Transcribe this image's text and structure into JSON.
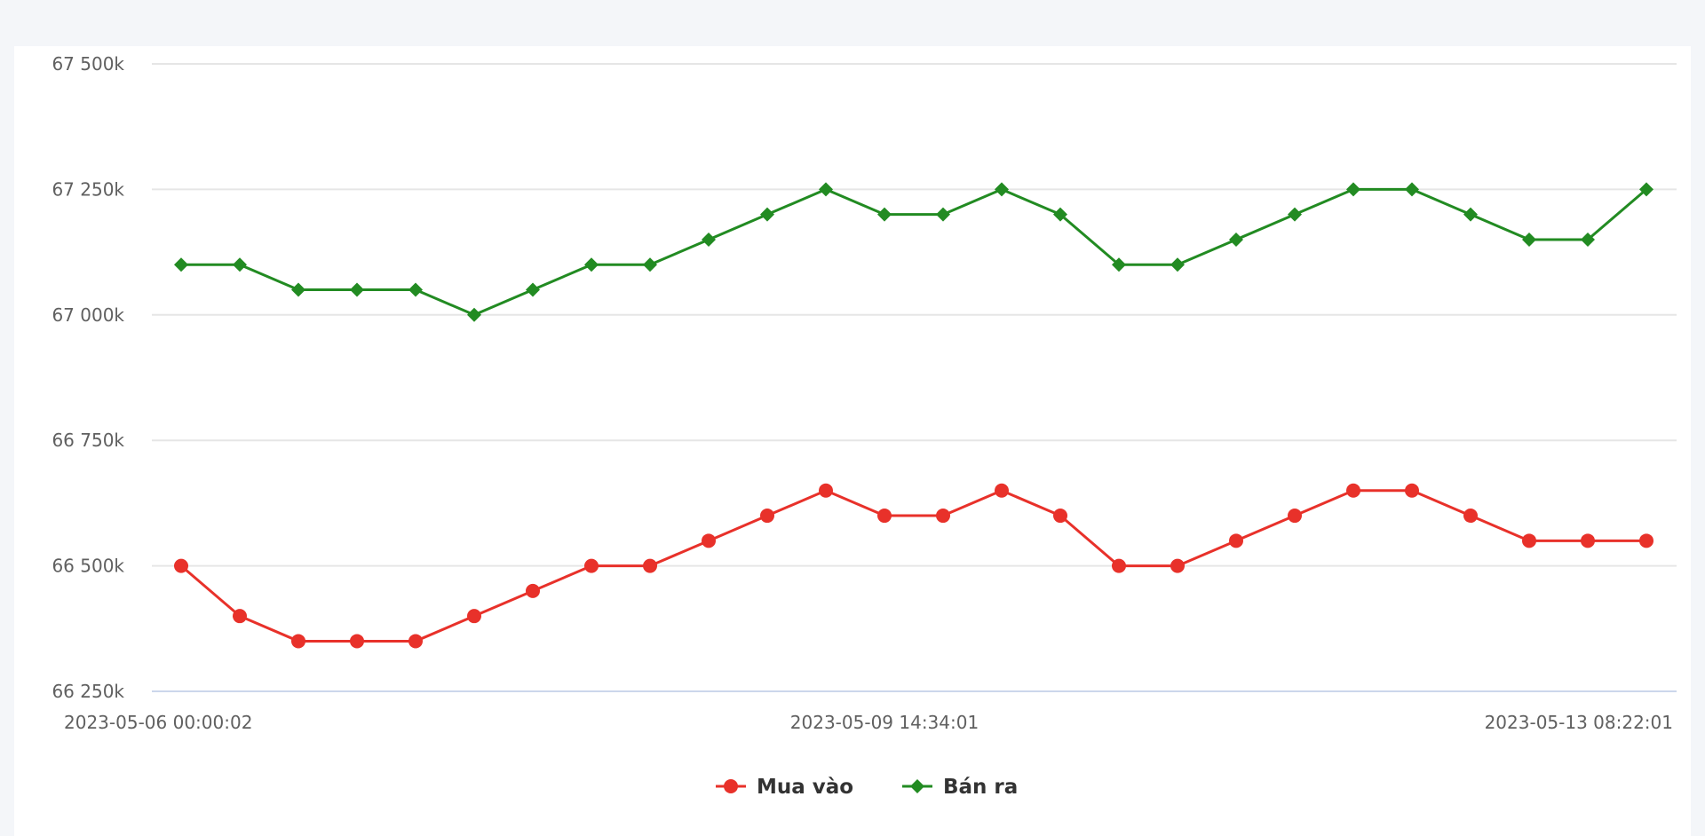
{
  "chart_data": {
    "type": "line",
    "title": "",
    "xlabel": "",
    "ylabel": "",
    "ylim": [
      66250,
      67500
    ],
    "y_ticks": [
      66250,
      66500,
      66750,
      67000,
      67250,
      67500
    ],
    "y_tick_labels": [
      "66 250k",
      "66 500k",
      "66 750k",
      "67 000k",
      "67 250k",
      "67 500k"
    ],
    "x_tick_labels": [
      {
        "index": 0,
        "label": "2023-05-06 00:00:02"
      },
      {
        "index": 12,
        "label": "2023-05-09 14:34:01"
      },
      {
        "index": 25,
        "label": "2023-05-13 08:22:01"
      }
    ],
    "grid": true,
    "legend_position": "bottom-center",
    "series": [
      {
        "name": "Mua vào",
        "color": "#e8312a",
        "marker": "circle",
        "values": [
          66500,
          66400,
          66350,
          66350,
          66350,
          66400,
          66450,
          66500,
          66500,
          66550,
          66600,
          66650,
          66600,
          66600,
          66650,
          66600,
          66500,
          66500,
          66550,
          66600,
          66650,
          66650,
          66600,
          66550,
          66550,
          66550
        ]
      },
      {
        "name": "Bán ra",
        "color": "#228b22",
        "marker": "diamond",
        "values": [
          67100,
          67100,
          67050,
          67050,
          67050,
          67000,
          67050,
          67100,
          67100,
          67150,
          67200,
          67250,
          67200,
          67200,
          67250,
          67200,
          67100,
          67100,
          67150,
          67200,
          67250,
          67250,
          67200,
          67150,
          67150,
          67250
        ]
      }
    ]
  }
}
